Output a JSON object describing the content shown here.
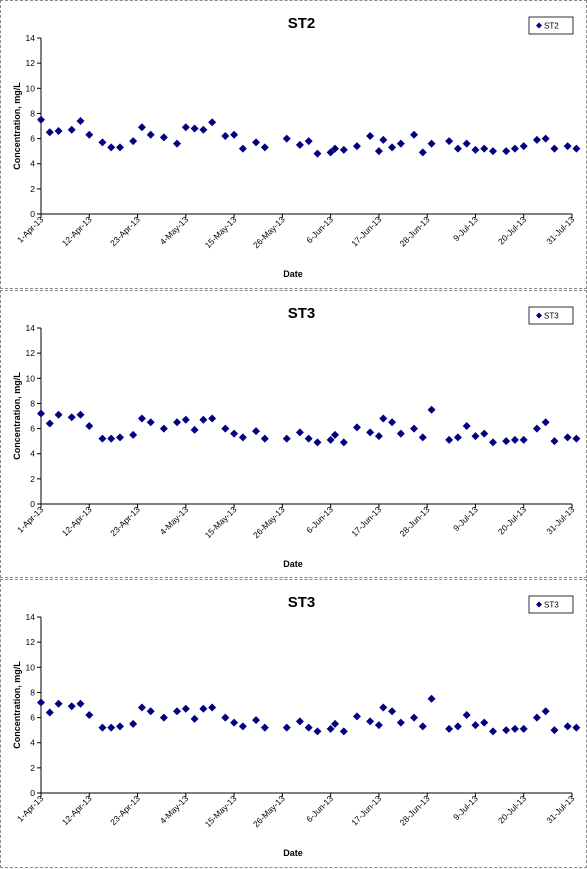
{
  "colors": {
    "marker": "#000080",
    "axis": "#000000",
    "panel_border": "#8a8a8a"
  },
  "chart_data": [
    {
      "type": "scatter",
      "title": "ST2",
      "xlabel": "Date",
      "ylabel": "Concentration, mg/L",
      "ylim": [
        0,
        14
      ],
      "yticks": [
        0,
        2,
        4,
        6,
        8,
        10,
        12,
        14
      ],
      "xlim": [
        "2013-04-01",
        "2013-07-31"
      ],
      "xticks": [
        "1-Apr-13",
        "12-Apr-13",
        "23-Apr-13",
        "4-May-13",
        "15-May-13",
        "26-May-13",
        "6-Jun-13",
        "17-Jun-13",
        "28-Jun-13",
        "9-Jul-13",
        "20-Jul-13",
        "31-Jul-13"
      ],
      "legend": "top-right",
      "grid": false,
      "series": [
        {
          "name": "ST2",
          "marker": "diamond",
          "x": [
            "2013-04-01",
            "2013-04-03",
            "2013-04-05",
            "2013-04-08",
            "2013-04-10",
            "2013-04-12",
            "2013-04-15",
            "2013-04-17",
            "2013-04-19",
            "2013-04-22",
            "2013-04-24",
            "2013-04-26",
            "2013-04-29",
            "2013-05-02",
            "2013-05-04",
            "2013-05-06",
            "2013-05-08",
            "2013-05-10",
            "2013-05-13",
            "2013-05-15",
            "2013-05-17",
            "2013-05-20",
            "2013-05-22",
            "2013-05-27",
            "2013-05-30",
            "2013-06-01",
            "2013-06-03",
            "2013-06-06",
            "2013-06-07",
            "2013-06-09",
            "2013-06-12",
            "2013-06-15",
            "2013-06-17",
            "2013-06-18",
            "2013-06-20",
            "2013-06-22",
            "2013-06-25",
            "2013-06-27",
            "2013-06-29",
            "2013-07-03",
            "2013-07-05",
            "2013-07-07",
            "2013-07-09",
            "2013-07-11",
            "2013-07-13",
            "2013-07-16",
            "2013-07-18",
            "2013-07-20",
            "2013-07-23",
            "2013-07-25",
            "2013-07-27",
            "2013-07-30",
            "2013-08-01"
          ],
          "y": [
            7.5,
            6.5,
            6.6,
            6.7,
            7.4,
            6.3,
            5.7,
            5.3,
            5.3,
            5.8,
            6.9,
            6.3,
            6.1,
            5.6,
            6.9,
            6.8,
            6.7,
            7.3,
            6.2,
            6.3,
            5.2,
            5.7,
            5.3,
            6.0,
            5.5,
            5.8,
            4.8,
            4.9,
            5.2,
            5.1,
            5.4,
            6.2,
            5.0,
            5.9,
            5.3,
            5.6,
            6.3,
            4.9,
            5.6,
            5.8,
            5.2,
            5.6,
            5.1,
            5.2,
            5.0,
            5.0,
            5.2,
            5.4,
            5.9,
            6.0,
            5.2,
            5.4,
            5.2
          ]
        }
      ]
    },
    {
      "type": "scatter",
      "title": "ST3",
      "xlabel": "Date",
      "ylabel": "Concentration, mg/L",
      "ylim": [
        0,
        14
      ],
      "yticks": [
        0,
        2,
        4,
        6,
        8,
        10,
        12,
        14
      ],
      "xlim": [
        "2013-04-01",
        "2013-07-31"
      ],
      "xticks": [
        "1-Apr-13",
        "12-Apr-13",
        "23-Apr-13",
        "4-May-13",
        "15-May-13",
        "26-May-13",
        "6-Jun-13",
        "17-Jun-13",
        "28-Jun-13",
        "9-Jul-13",
        "20-Jul-13",
        "31-Jul-13"
      ],
      "legend": "top-right",
      "grid": false,
      "series": [
        {
          "name": "ST3",
          "marker": "diamond",
          "x": [
            "2013-04-01",
            "2013-04-03",
            "2013-04-05",
            "2013-04-08",
            "2013-04-10",
            "2013-04-12",
            "2013-04-15",
            "2013-04-17",
            "2013-04-19",
            "2013-04-22",
            "2013-04-24",
            "2013-04-26",
            "2013-04-29",
            "2013-05-02",
            "2013-05-04",
            "2013-05-06",
            "2013-05-08",
            "2013-05-10",
            "2013-05-13",
            "2013-05-15",
            "2013-05-17",
            "2013-05-20",
            "2013-05-22",
            "2013-05-27",
            "2013-05-30",
            "2013-06-01",
            "2013-06-03",
            "2013-06-06",
            "2013-06-07",
            "2013-06-09",
            "2013-06-12",
            "2013-06-15",
            "2013-06-17",
            "2013-06-18",
            "2013-06-20",
            "2013-06-22",
            "2013-06-25",
            "2013-06-27",
            "2013-06-29",
            "2013-07-03",
            "2013-07-05",
            "2013-07-07",
            "2013-07-09",
            "2013-07-11",
            "2013-07-13",
            "2013-07-16",
            "2013-07-18",
            "2013-07-20",
            "2013-07-23",
            "2013-07-25",
            "2013-07-27",
            "2013-07-30",
            "2013-08-01"
          ],
          "y": [
            7.2,
            6.4,
            7.1,
            6.9,
            7.1,
            6.2,
            5.2,
            5.2,
            5.3,
            5.5,
            6.8,
            6.5,
            6.0,
            6.5,
            6.7,
            5.9,
            6.7,
            6.8,
            6.0,
            5.6,
            5.3,
            5.8,
            5.2,
            5.2,
            5.7,
            5.2,
            4.9,
            5.1,
            5.5,
            4.9,
            6.1,
            5.7,
            5.4,
            6.8,
            6.5,
            5.6,
            6.0,
            5.3,
            7.5,
            5.1,
            5.3,
            6.2,
            5.4,
            5.6,
            4.9,
            5.0,
            5.1,
            5.1,
            6.0,
            6.5,
            5.0,
            5.3,
            5.2
          ]
        }
      ]
    },
    {
      "type": "scatter",
      "title": "ST3",
      "xlabel": "Date",
      "ylabel": "Concentration, mg/L",
      "ylim": [
        0,
        14
      ],
      "yticks": [
        0,
        2,
        4,
        6,
        8,
        10,
        12,
        14
      ],
      "xlim": [
        "2013-04-01",
        "2013-07-31"
      ],
      "xticks": [
        "1-Apr-13",
        "12-Apr-13",
        "23-Apr-13",
        "4-May-13",
        "15-May-13",
        "26-May-13",
        "6-Jun-13",
        "17-Jun-13",
        "28-Jun-13",
        "9-Jul-13",
        "20-Jul-13",
        "31-Jul-13"
      ],
      "legend": "top-right",
      "grid": false,
      "series": [
        {
          "name": "ST3",
          "marker": "diamond",
          "x": [
            "2013-04-01",
            "2013-04-03",
            "2013-04-05",
            "2013-04-08",
            "2013-04-10",
            "2013-04-12",
            "2013-04-15",
            "2013-04-17",
            "2013-04-19",
            "2013-04-22",
            "2013-04-24",
            "2013-04-26",
            "2013-04-29",
            "2013-05-02",
            "2013-05-04",
            "2013-05-06",
            "2013-05-08",
            "2013-05-10",
            "2013-05-13",
            "2013-05-15",
            "2013-05-17",
            "2013-05-20",
            "2013-05-22",
            "2013-05-27",
            "2013-05-30",
            "2013-06-01",
            "2013-06-03",
            "2013-06-06",
            "2013-06-07",
            "2013-06-09",
            "2013-06-12",
            "2013-06-15",
            "2013-06-17",
            "2013-06-18",
            "2013-06-20",
            "2013-06-22",
            "2013-06-25",
            "2013-06-27",
            "2013-06-29",
            "2013-07-03",
            "2013-07-05",
            "2013-07-07",
            "2013-07-09",
            "2013-07-11",
            "2013-07-13",
            "2013-07-16",
            "2013-07-18",
            "2013-07-20",
            "2013-07-23",
            "2013-07-25",
            "2013-07-27",
            "2013-07-30",
            "2013-08-01"
          ],
          "y": [
            7.2,
            6.4,
            7.1,
            6.9,
            7.1,
            6.2,
            5.2,
            5.2,
            5.3,
            5.5,
            6.8,
            6.5,
            6.0,
            6.5,
            6.7,
            5.9,
            6.7,
            6.8,
            6.0,
            5.6,
            5.3,
            5.8,
            5.2,
            5.2,
            5.7,
            5.2,
            4.9,
            5.1,
            5.5,
            4.9,
            6.1,
            5.7,
            5.4,
            6.8,
            6.5,
            5.6,
            6.0,
            5.3,
            7.5,
            5.1,
            5.3,
            6.2,
            5.4,
            5.6,
            4.9,
            5.0,
            5.1,
            5.1,
            6.0,
            6.5,
            5.0,
            5.3,
            5.2
          ]
        }
      ]
    }
  ]
}
